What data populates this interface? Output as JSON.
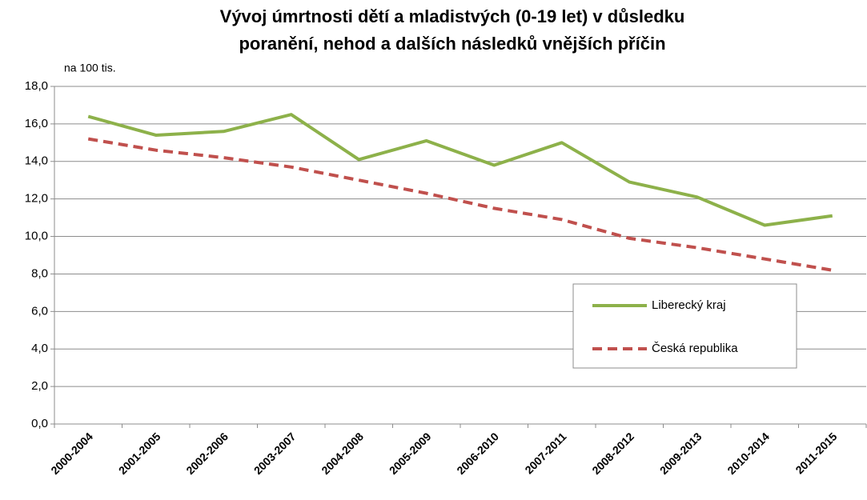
{
  "chart_data": {
    "type": "line",
    "title": [
      "Vývoj úmrtnosti dětí a mladistvých (0-19 let) v důsledku",
      "poranění, nehod a dalších následků vnějších příčin"
    ],
    "y_unit_label": "na 100 tis.",
    "categories": [
      "2000-2004",
      "2001-2005",
      "2002-2006",
      "2003-2007",
      "2004-2008",
      "2005-2009",
      "2006-2010",
      "2007-2011",
      "2008-2012",
      "2009-2013",
      "2010-2014",
      "2011-2015"
    ],
    "series": [
      {
        "name": "Liberecký kraj",
        "color": "#8db14a",
        "dash": false,
        "values": [
          16.4,
          15.4,
          15.6,
          16.5,
          14.1,
          15.1,
          13.8,
          15.0,
          12.9,
          12.1,
          10.6,
          11.1
        ]
      },
      {
        "name": "Česká republika",
        "color": "#c0504d",
        "dash": true,
        "values": [
          15.2,
          14.6,
          14.2,
          13.7,
          13.0,
          12.3,
          11.5,
          10.9,
          9.9,
          9.4,
          8.8,
          8.2
        ]
      }
    ],
    "ylim": [
      0,
      18
    ],
    "yticks": [
      {
        "value": 0,
        "label": "0,0"
      },
      {
        "value": 2,
        "label": "2,0"
      },
      {
        "value": 4,
        "label": "4,0"
      },
      {
        "value": 6,
        "label": "6,0"
      },
      {
        "value": 8,
        "label": "8,0"
      },
      {
        "value": 10,
        "label": "10,0"
      },
      {
        "value": 12,
        "label": "12,0"
      },
      {
        "value": 14,
        "label": "14,0"
      },
      {
        "value": 16,
        "label": "16,0"
      },
      {
        "value": 18,
        "label": "18,0"
      }
    ],
    "grid": true
  }
}
